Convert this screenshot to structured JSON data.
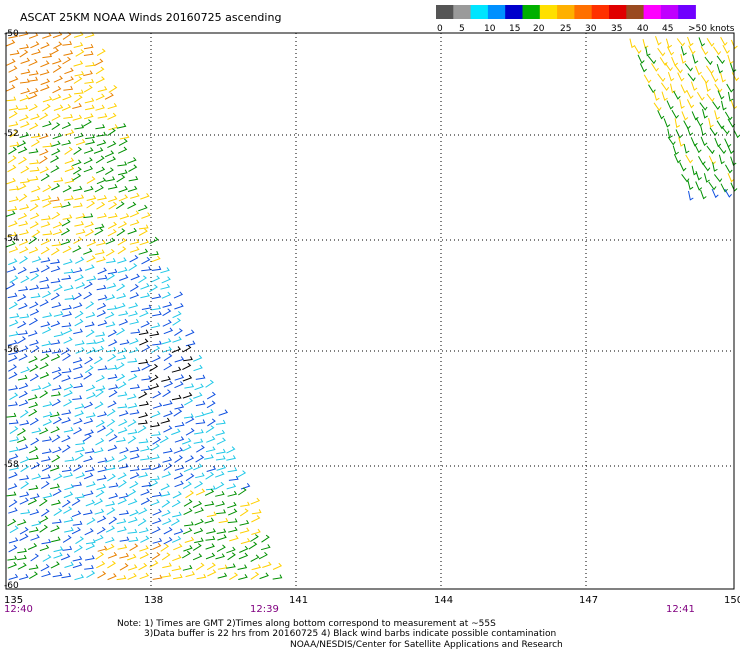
{
  "title": "ASCAT 25KM NOAA Winds 20160725 ascending",
  "legend": {
    "unit": "knots",
    "swatches": [
      {
        "color": "#555555"
      },
      {
        "color": "#9a9a9a"
      },
      {
        "color": "#00e5ff"
      },
      {
        "color": "#0090ff"
      },
      {
        "color": "#0000cc"
      },
      {
        "color": "#00b000"
      },
      {
        "color": "#ffe000"
      },
      {
        "color": "#ffb000"
      },
      {
        "color": "#ff7000"
      },
      {
        "color": "#ff3000"
      },
      {
        "color": "#e00000"
      },
      {
        "color": "#9a4a20"
      },
      {
        "color": "#ff00ff"
      },
      {
        "color": "#c000ff"
      },
      {
        "color": "#7000ff"
      }
    ],
    "labels": [
      "0",
      "5",
      "10",
      "15",
      "20",
      "25",
      "30",
      "35",
      "40",
      "45",
      ">50 knots"
    ]
  },
  "lat_labels": [
    "-50",
    "-52",
    "-54",
    "-56",
    "-58",
    "-60"
  ],
  "lon_labels": [
    "135",
    "138",
    "141",
    "144",
    "147",
    "150"
  ],
  "time_labels": [
    "12:40",
    "12:39",
    "12:41"
  ],
  "notes": {
    "line1": "Note: 1) Times are GMT 2)Times along bottom correspond to measurement at ~55S",
    "line2": "3)Data buffer is 22 hrs from 20160725 4) Black wind barbs indicate possible contamination",
    "line3": "NOAA/NESDIS/Center for Satellite Applications and Research"
  },
  "colors": {
    "time": "#800080",
    "grid": "#000000",
    "yellow": "#ffd000",
    "orange": "#e88000",
    "green": "#009000",
    "blue": "#1050e0",
    "cyan": "#20c8e8",
    "black": "#000000"
  }
}
